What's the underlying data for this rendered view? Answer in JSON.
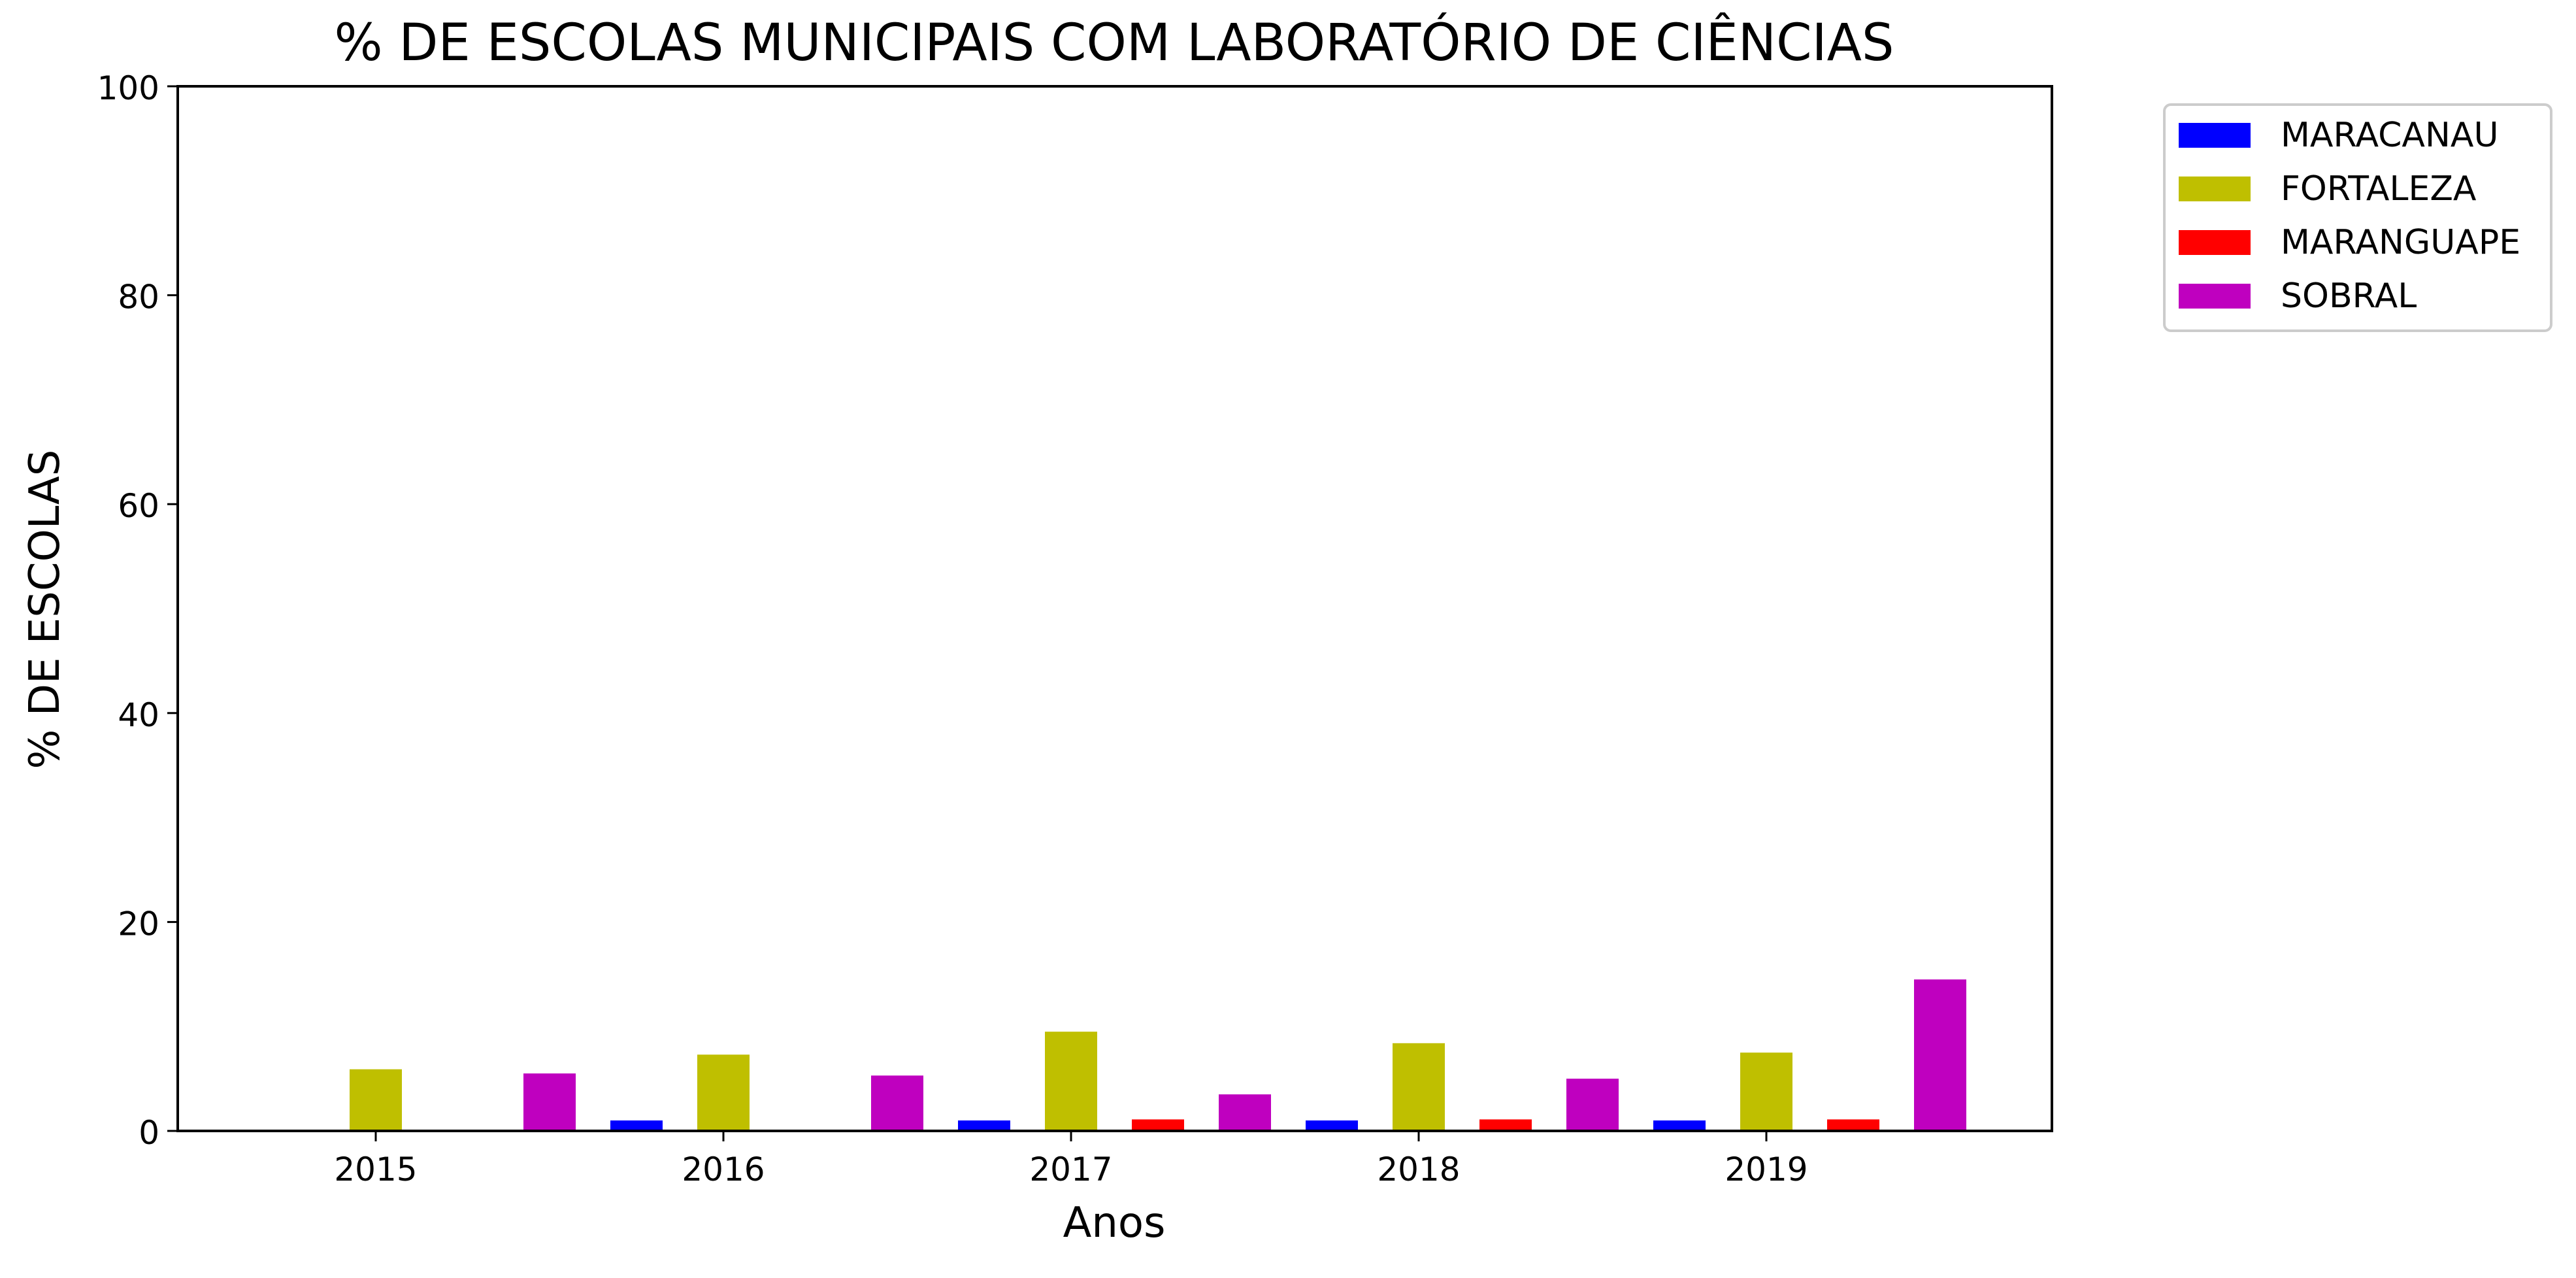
{
  "chart_data": {
    "type": "bar",
    "title": "% DE ESCOLAS MUNICIPAIS COM LABORATÓRIO DE CIÊNCIAS",
    "xlabel": "Anos",
    "ylabel": "% DE ESCOLAS",
    "ylim": [
      0,
      100
    ],
    "yticks": [
      0,
      20,
      40,
      60,
      80,
      100
    ],
    "categories": [
      "2015",
      "2016",
      "2017",
      "2018",
      "2019"
    ],
    "grid": false,
    "legend_position": "outside-top-right",
    "series": [
      {
        "name": "MARACANAU",
        "color": "#0000ff",
        "values": [
          0.0,
          1.0,
          1.0,
          1.0,
          1.0
        ]
      },
      {
        "name": "FORTALEZA",
        "color": "#bfbf00",
        "values": [
          5.9,
          7.3,
          9.5,
          8.4,
          7.5
        ]
      },
      {
        "name": "MARANGUAPE",
        "color": "#ff0000",
        "values": [
          0.0,
          0.0,
          1.1,
          1.1,
          1.1
        ]
      },
      {
        "name": "SOBRAL",
        "color": "#bf00bf",
        "values": [
          5.5,
          5.3,
          3.5,
          5.0,
          14.5
        ]
      }
    ]
  }
}
